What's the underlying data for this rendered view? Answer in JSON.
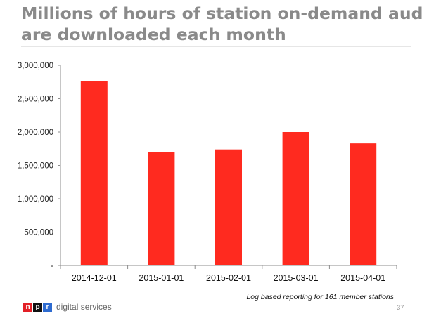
{
  "title_lines": [
    "Millions of hours of station on-demand audio",
    "are downloaded each month"
  ],
  "footnote": "Log based reporting for 161 member stations",
  "brand": {
    "letters": [
      "n",
      "p",
      "r"
    ],
    "text": "digital services"
  },
  "page_number": "37",
  "colors": {
    "bar": "#ff2a1f",
    "title": "#8a8a8a"
  },
  "chart_data": {
    "type": "bar",
    "title": "Millions of hours of station on-demand audio are downloaded each month",
    "categories": [
      "2014-12-01",
      "2015-01-01",
      "2015-02-01",
      "2015-03-01",
      "2015-04-01"
    ],
    "values": [
      2760000,
      1700000,
      1740000,
      2000000,
      1830000
    ],
    "ylim": [
      0,
      3000000
    ],
    "yticks": [
      0,
      500000,
      1000000,
      1500000,
      2000000,
      2500000,
      3000000
    ],
    "ytick_labels": [
      "-",
      "500,000",
      "1,000,000",
      "1,500,000",
      "2,000,000",
      "2,500,000",
      "3,000,000"
    ],
    "grid": false,
    "legend": "none"
  }
}
